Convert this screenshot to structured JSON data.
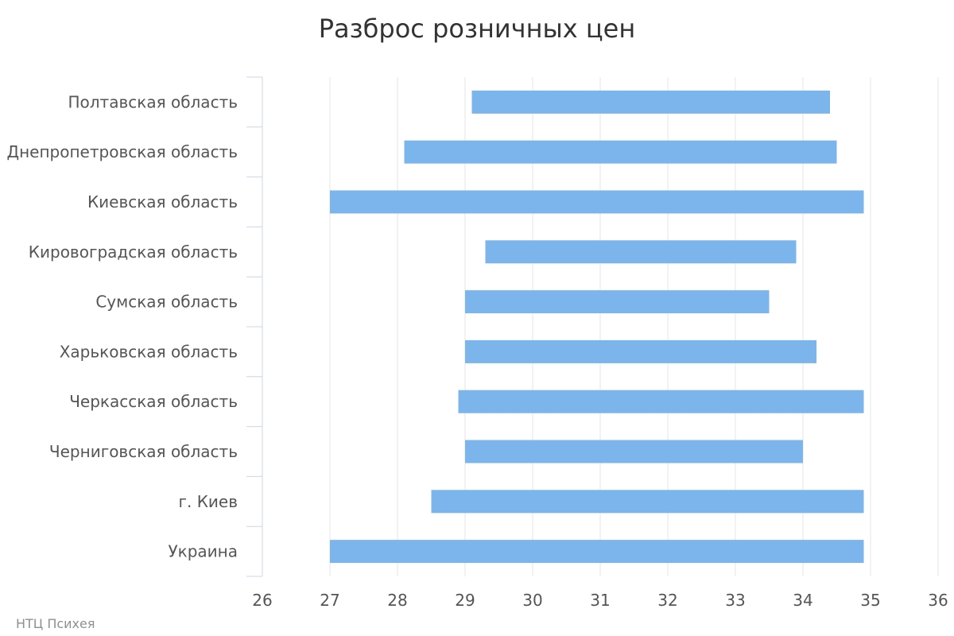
{
  "chart_data": {
    "type": "bar",
    "orientation": "horizontal",
    "subtype": "range",
    "title": "Разброс розничных цен",
    "xlabel": "",
    "ylabel": "",
    "xlim": [
      26,
      36
    ],
    "ticks": [
      "26",
      "27",
      "28",
      "29",
      "30",
      "31",
      "32",
      "33",
      "34",
      "35",
      "36"
    ],
    "categories": [
      "Полтавская область",
      "Днепропетровская область",
      "Киевская область",
      "Кировоградская область",
      "Сумская область",
      "Харьковская область",
      "Черкасская область",
      "Черниговская область",
      "г. Киев",
      "Украина"
    ],
    "series": [
      {
        "low": [
          29.1,
          28.1,
          27.0,
          29.3,
          29.0,
          29.0,
          28.9,
          29.0,
          28.5,
          27.0
        ],
        "high": [
          34.4,
          34.5,
          34.9,
          33.9,
          33.5,
          34.2,
          34.9,
          34.0,
          34.9,
          34.9
        ],
        "color": "#7cb5ec"
      }
    ],
    "grid": true,
    "legend": "none",
    "colors": {
      "bar": "#7cb5ec",
      "grid": "#e6e6e6",
      "axis": "#ccd6eb"
    },
    "credit": "НТЦ Психея"
  }
}
